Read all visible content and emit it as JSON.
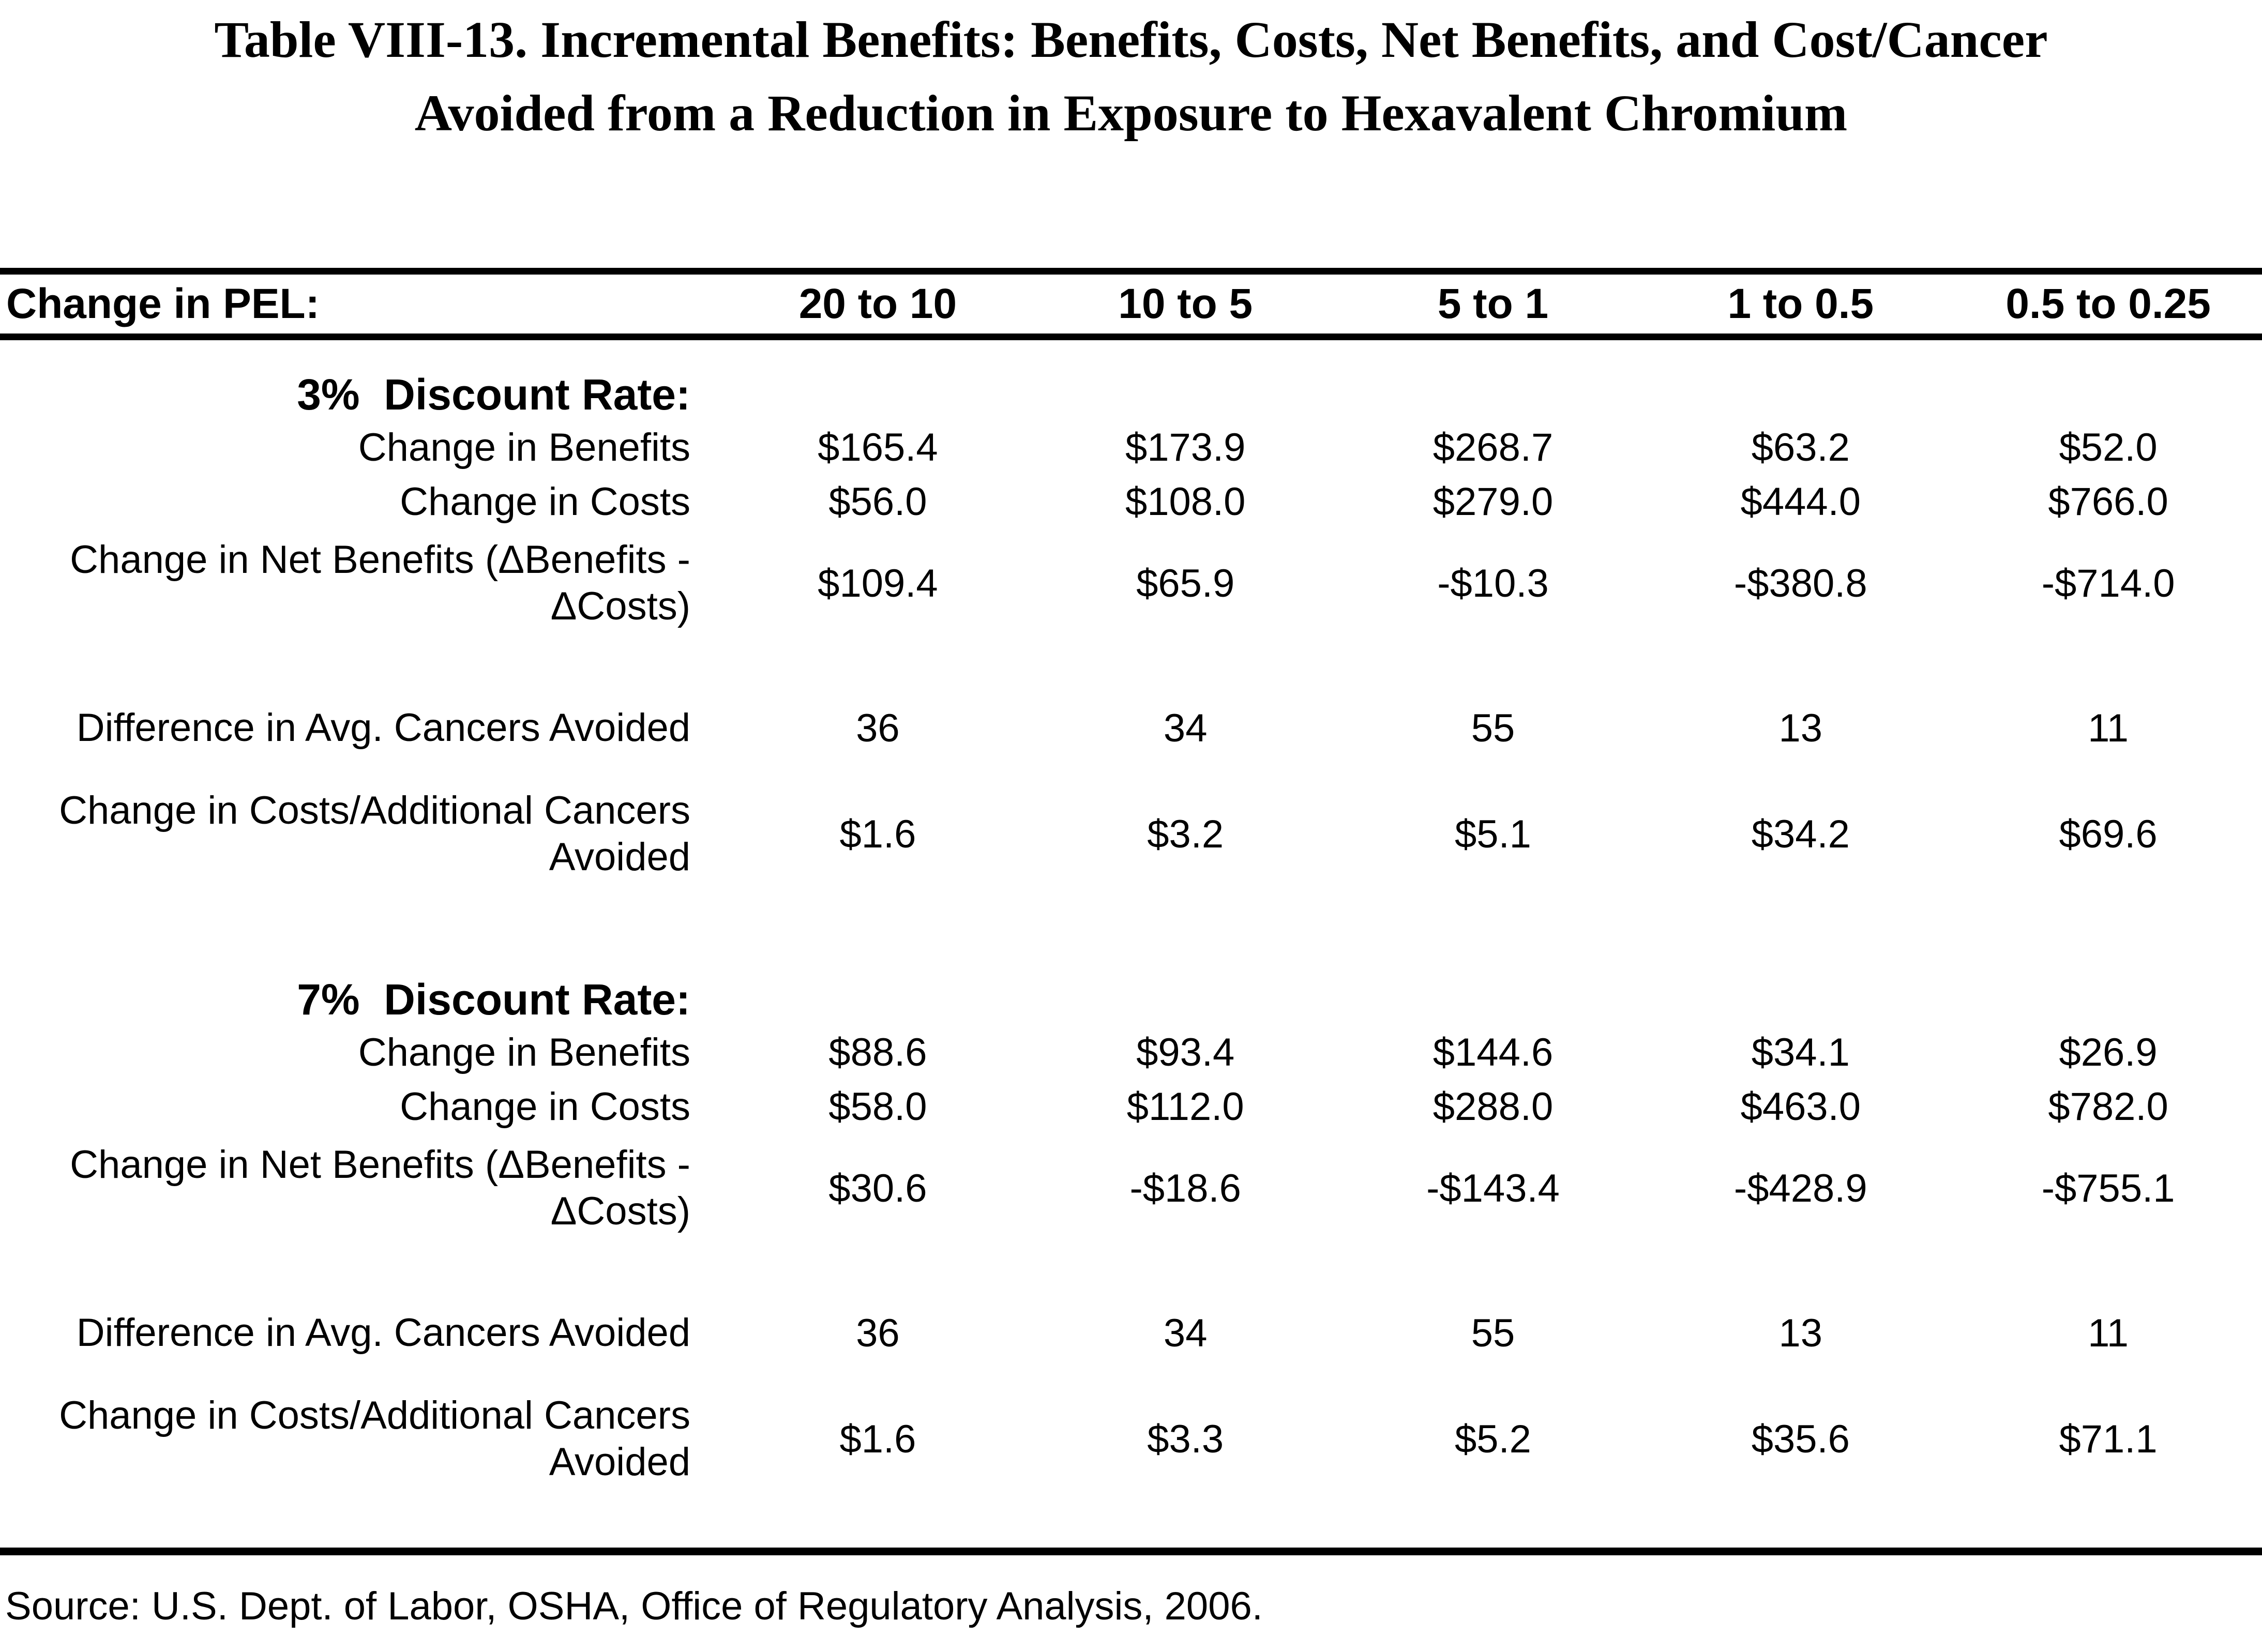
{
  "title": {
    "line1": "Table VIII-13. Incremental Benefits: Benefits, Costs, Net Benefits, and Cost/Cancer",
    "line2": "Avoided from a Reduction in Exposure to Hexavalent Chromium"
  },
  "table": {
    "header": {
      "label": "Change in PEL:",
      "columns": [
        "20 to 10",
        "10 to 5",
        "5 to 1",
        "1 to 0.5",
        "0.5 to 0.25"
      ]
    },
    "sections": [
      {
        "heading": "3%  Discount Rate:",
        "rows": [
          {
            "label": "Change in Benefits",
            "values": [
              "$165.4",
              "$173.9",
              "$268.7",
              "$63.2",
              "$52.0"
            ]
          },
          {
            "label": "Change in Costs",
            "values": [
              "$56.0",
              "$108.0",
              "$279.0",
              "$444.0",
              "$766.0"
            ]
          },
          {
            "label": "Change in Net Benefits (ΔBenefits - ΔCosts)",
            "values": [
              "$109.4",
              "$65.9",
              "-$10.3",
              "-$380.8",
              "-$714.0"
            ]
          },
          {
            "label": "Difference in Avg. Cancers Avoided",
            "values": [
              "36",
              "34",
              "55",
              "13",
              "11"
            ]
          },
          {
            "label": "Change in Costs/Additional Cancers Avoided",
            "values": [
              "$1.6",
              "$3.2",
              "$5.1",
              "$34.2",
              "$69.6"
            ]
          }
        ]
      },
      {
        "heading": "7%  Discount Rate:",
        "rows": [
          {
            "label": "Change in Benefits",
            "values": [
              "$88.6",
              "$93.4",
              "$144.6",
              "$34.1",
              "$26.9"
            ]
          },
          {
            "label": "Change in Costs",
            "values": [
              "$58.0",
              "$112.0",
              "$288.0",
              "$463.0",
              "$782.0"
            ]
          },
          {
            "label": "Change in Net Benefits (ΔBenefits - ΔCosts)",
            "values": [
              "$30.6",
              "-$18.6",
              "-$143.4",
              "-$428.9",
              "-$755.1"
            ]
          },
          {
            "label": "Difference in Avg. Cancers Avoided",
            "values": [
              "36",
              "34",
              "55",
              "13",
              "11"
            ]
          },
          {
            "label": "Change in Costs/Additional Cancers Avoided",
            "values": [
              "$1.6",
              "$3.3",
              "$5.2",
              "$35.6",
              "$71.1"
            ]
          }
        ]
      }
    ]
  },
  "source": {
    "text": "Source: U.S. Dept. of Labor, OSHA, Office of Regulatory Analysis, 2006."
  }
}
